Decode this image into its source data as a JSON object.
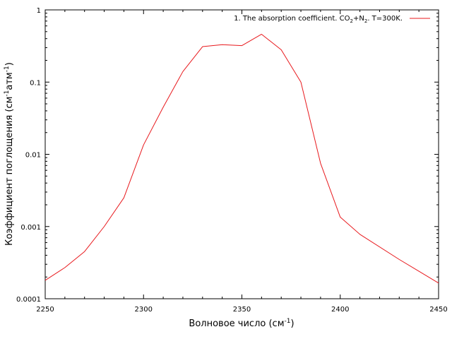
{
  "chart_data": {
    "type": "line",
    "xlabel_main": "Волновое число (см",
    "xlabel_sup": "-1",
    "xlabel_end": ")",
    "ylabel_parts": {
      "a": "Коэффициент поглощения (см",
      "a_sup": "-1",
      "b": "атм",
      "b_sup": "-1",
      "c": ")"
    },
    "xlim": [
      2250,
      2450
    ],
    "ylim": [
      0.0001,
      1
    ],
    "y_scale": "log",
    "x_ticks": [
      "2250",
      "2300",
      "2350",
      "2400",
      "2450"
    ],
    "y_ticks": [
      "1",
      "0.1",
      "0.01",
      "0.001",
      "0.0001"
    ],
    "legend_position": "top-right",
    "legend": {
      "t1": "1. The absorption coefficient. CO",
      "s1": "2",
      "t2": "+N",
      "s2": "2",
      "t3": ". T=300K."
    },
    "series": [
      {
        "color": "#e8191d",
        "x": [
          2250,
          2260,
          2270,
          2280,
          2290,
          2300,
          2310,
          2320,
          2330,
          2340,
          2350,
          2360,
          2370,
          2380,
          2390,
          2400,
          2410,
          2430,
          2450
        ],
        "y": [
          0.00018,
          0.00027,
          0.00045,
          0.001,
          0.0025,
          0.0135,
          0.045,
          0.14,
          0.31,
          0.33,
          0.32,
          0.46,
          0.28,
          0.1,
          0.0075,
          0.00135,
          0.00078,
          0.00035,
          0.000165
        ]
      }
    ]
  }
}
